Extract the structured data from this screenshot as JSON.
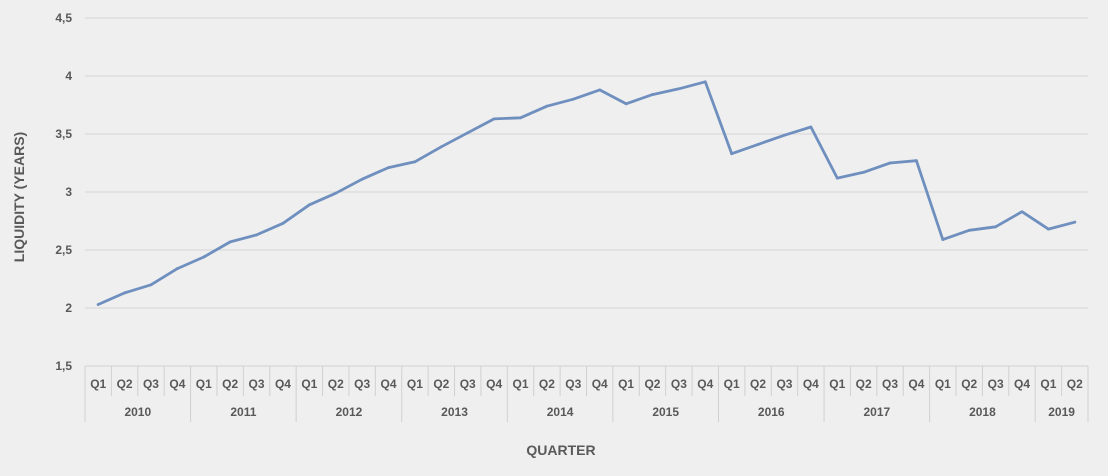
{
  "chart_data": {
    "type": "line",
    "title": "",
    "xlabel": "QUARTER",
    "ylabel": "LIQUIDITY (YEARS)",
    "ylim": [
      1.5,
      4.5
    ],
    "ytick_values": [
      1.5,
      2,
      2.5,
      3,
      3.5,
      4,
      4.5
    ],
    "ytick_labels": [
      "1,5",
      "2",
      "2,5",
      "3",
      "3,5",
      "4",
      "4,5"
    ],
    "grid": true,
    "legend": "none",
    "line_color": "#6f8fbf",
    "years": [
      {
        "label": "2010",
        "quarters": [
          "Q1",
          "Q2",
          "Q3",
          "Q4"
        ]
      },
      {
        "label": "2011",
        "quarters": [
          "Q1",
          "Q2",
          "Q3",
          "Q4"
        ]
      },
      {
        "label": "2012",
        "quarters": [
          "Q1",
          "Q2",
          "Q3",
          "Q4"
        ]
      },
      {
        "label": "2013",
        "quarters": [
          "Q1",
          "Q2",
          "Q3",
          "Q4"
        ]
      },
      {
        "label": "2014",
        "quarters": [
          "Q1",
          "Q2",
          "Q3",
          "Q4"
        ]
      },
      {
        "label": "2015",
        "quarters": [
          "Q1",
          "Q2",
          "Q3",
          "Q4"
        ]
      },
      {
        "label": "2016",
        "quarters": [
          "Q1",
          "Q2",
          "Q3",
          "Q4"
        ]
      },
      {
        "label": "2017",
        "quarters": [
          "Q1",
          "Q2",
          "Q3",
          "Q4"
        ]
      },
      {
        "label": "2018",
        "quarters": [
          "Q1",
          "Q2",
          "Q3",
          "Q4"
        ]
      },
      {
        "label": "2019",
        "quarters": [
          "Q1",
          "Q2"
        ]
      }
    ],
    "values": [
      2.03,
      2.13,
      2.2,
      2.34,
      2.44,
      2.57,
      2.63,
      2.73,
      2.89,
      2.99,
      3.11,
      3.21,
      3.26,
      3.39,
      3.51,
      3.63,
      3.64,
      3.74,
      3.8,
      3.88,
      3.76,
      3.84,
      3.89,
      3.95,
      3.33,
      3.41,
      3.49,
      3.56,
      3.12,
      3.17,
      3.25,
      3.27,
      2.59,
      2.67,
      2.7,
      2.83,
      2.68,
      2.74
    ]
  }
}
